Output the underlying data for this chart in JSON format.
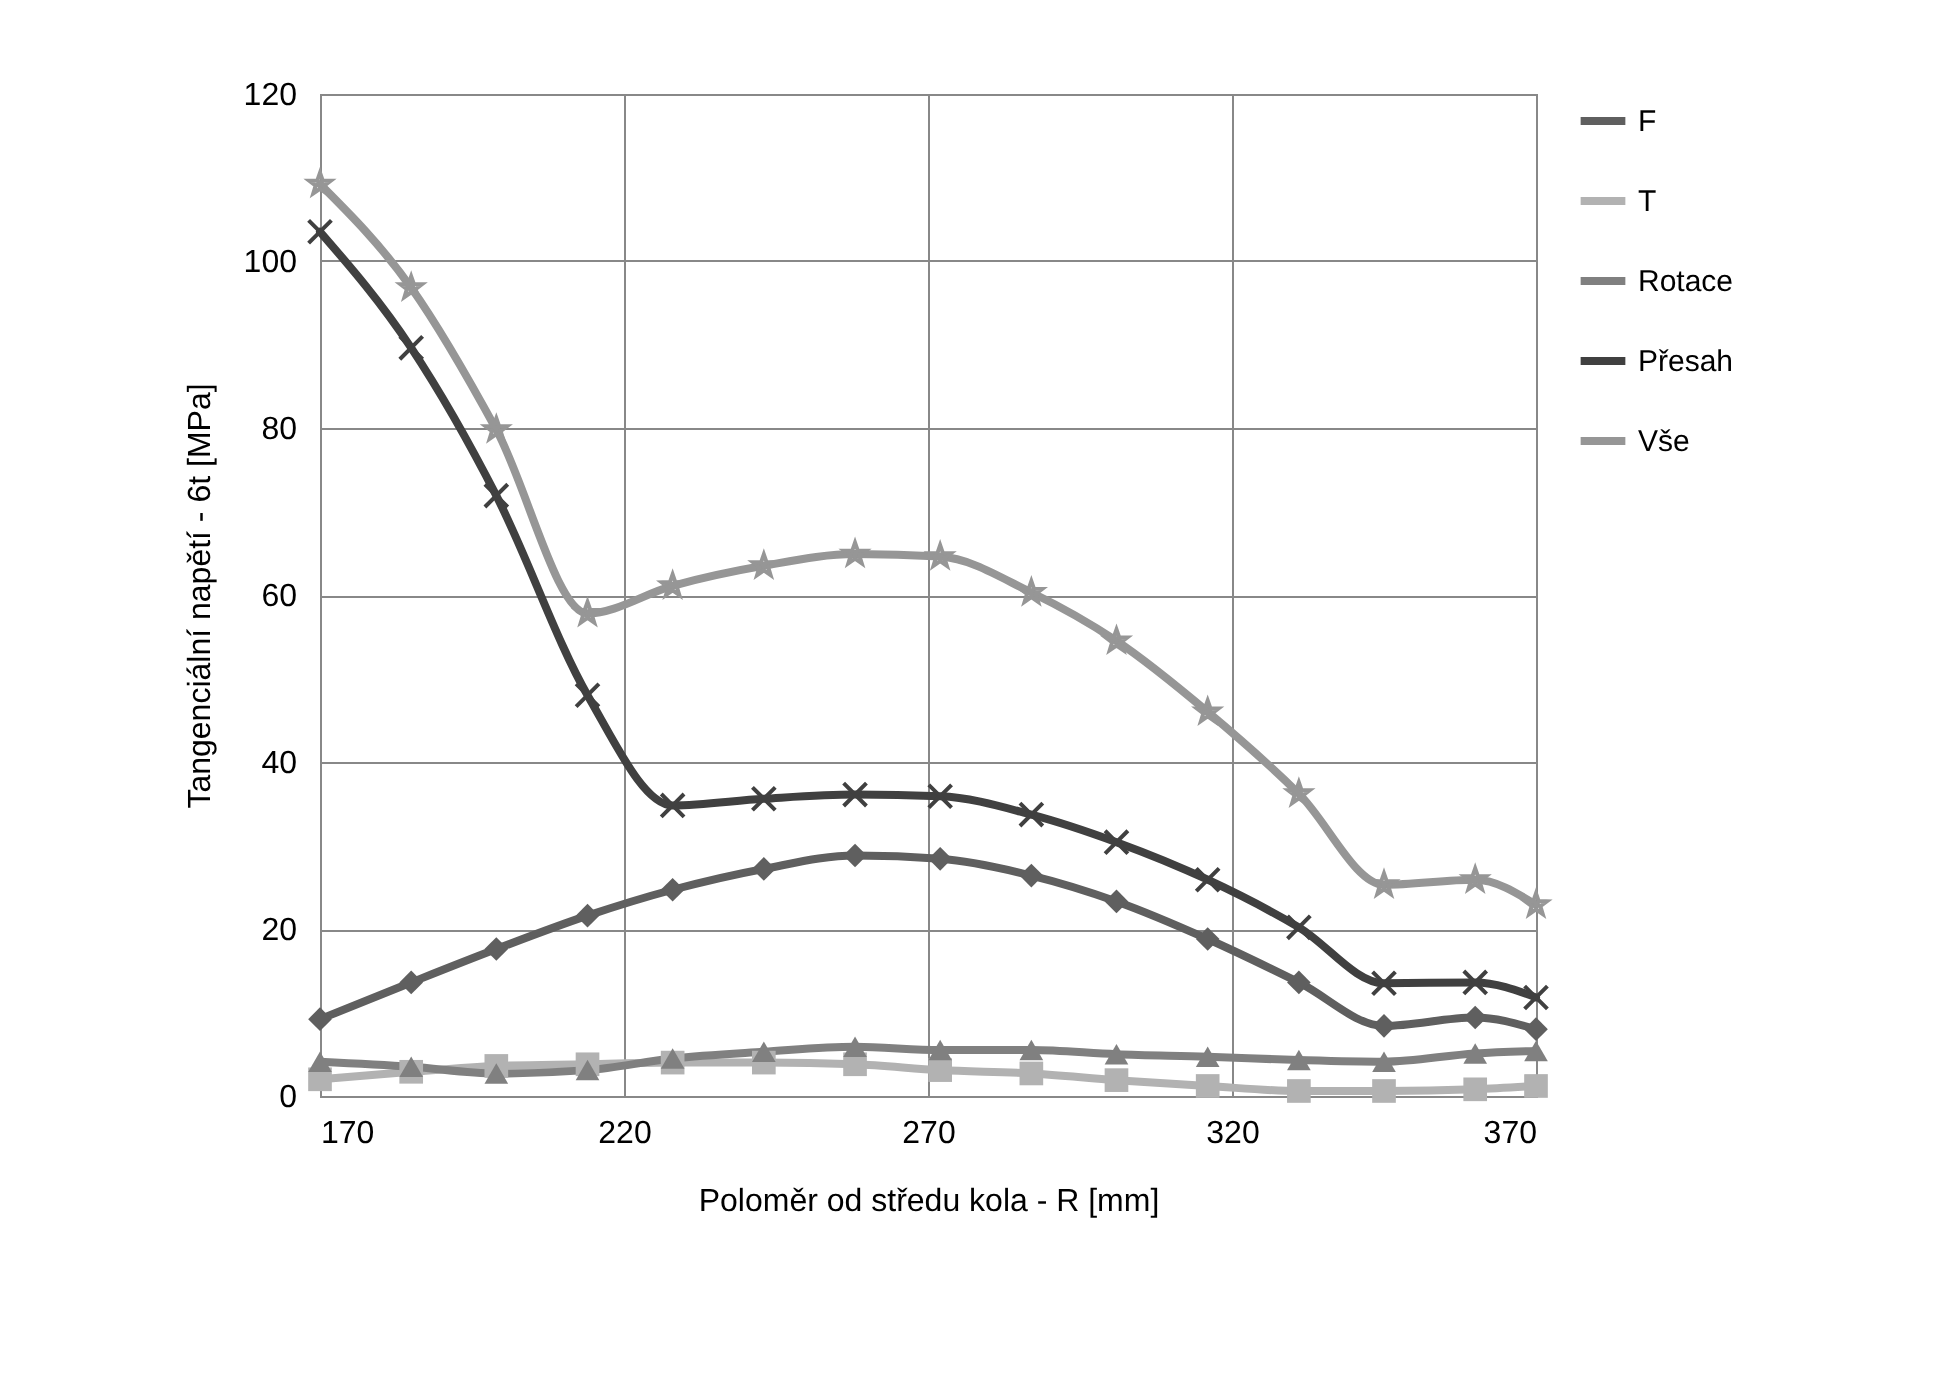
{
  "chart_data": {
    "type": "line",
    "xlabel": "Poloměr od středu kola - R [mm]",
    "ylabel": "Tangenciální napětí - 6t [MPa]",
    "x": [
      170,
      185,
      199,
      214,
      228,
      243,
      258,
      272,
      287,
      301,
      316,
      331,
      345,
      360,
      370
    ],
    "xlim": [
      170,
      370
    ],
    "xticks": [
      170,
      220,
      270,
      320,
      370
    ],
    "ylim": [
      0,
      120
    ],
    "yticks": [
      0,
      20,
      40,
      60,
      80,
      100,
      120
    ],
    "grid": true,
    "legend": "right",
    "series": [
      {
        "name": "F",
        "color": "#5f5f5f",
        "marker": "diamond",
        "values": [
          9.2,
          13.6,
          17.6,
          21.6,
          24.7,
          27.2,
          28.8,
          28.4,
          26.4,
          23.3,
          18.8,
          13.6,
          8.4,
          9.4,
          8.0
        ]
      },
      {
        "name": "T",
        "color": "#b2b2b2",
        "marker": "square",
        "values": [
          2.0,
          2.9,
          3.6,
          3.8,
          4.0,
          4.0,
          3.8,
          3.1,
          2.7,
          1.9,
          1.2,
          0.6,
          0.6,
          0.8,
          1.2
        ]
      },
      {
        "name": "Rotace",
        "color": "#808080",
        "marker": "triangle",
        "values": [
          4.1,
          3.5,
          2.7,
          3.1,
          4.5,
          5.3,
          5.9,
          5.5,
          5.5,
          5.0,
          4.7,
          4.3,
          4.1,
          5.1,
          5.4
        ]
      },
      {
        "name": "Přesah",
        "color": "#404040",
        "marker": "cross",
        "values": [
          103.5,
          89.6,
          71.9,
          48.0,
          34.8,
          35.6,
          36.1,
          35.9,
          33.7,
          30.4,
          25.9,
          20.2,
          13.5,
          13.6,
          11.8
        ]
      },
      {
        "name": "Vše",
        "color": "#969696",
        "marker": "star",
        "values": [
          109.2,
          96.8,
          79.8,
          57.8,
          61.1,
          63.5,
          64.9,
          64.6,
          60.3,
          54.5,
          46.0,
          36.2,
          25.3,
          25.9,
          22.9
        ]
      }
    ]
  }
}
